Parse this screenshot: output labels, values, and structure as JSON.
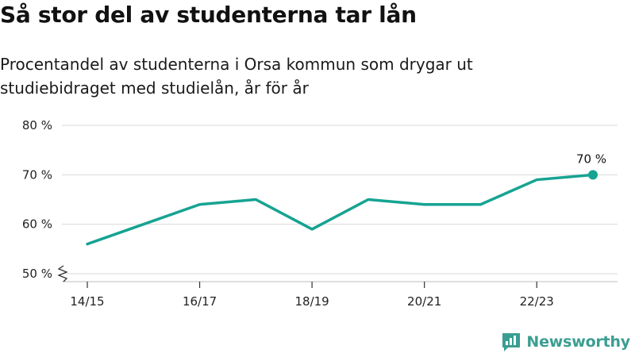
{
  "header": {
    "title": "Så stor del av studenterna tar lån",
    "subtitle": "Procentandel av studenterna i Orsa kommun som drygar ut studiebidraget med studielån, år för år"
  },
  "brand": {
    "name": "Newsworthy",
    "logo_icon": "newsworthy-logo-icon",
    "color": "#3a9e91"
  },
  "chart_data": {
    "type": "line",
    "x": [
      "14/15",
      "15/16",
      "16/17",
      "17/18",
      "18/19",
      "19/20",
      "20/21",
      "21/22",
      "22/23",
      "23/24"
    ],
    "x_tick_labels": [
      "14/15",
      "16/17",
      "18/19",
      "20/21",
      "22/23"
    ],
    "series": [
      {
        "values": [
          56,
          60,
          64,
          65,
          59,
          65,
          64,
          64,
          69,
          70
        ],
        "color": "#16a392"
      }
    ],
    "ylim": [
      50,
      80
    ],
    "y_ticks": [
      50,
      60,
      70,
      80
    ],
    "y_tick_labels": [
      "50 %",
      "60 %",
      "70 %",
      "80 %"
    ],
    "y_axis_break": true,
    "grid": true,
    "last_point_label": "70 %",
    "title": "",
    "xlabel": "",
    "ylabel": ""
  }
}
